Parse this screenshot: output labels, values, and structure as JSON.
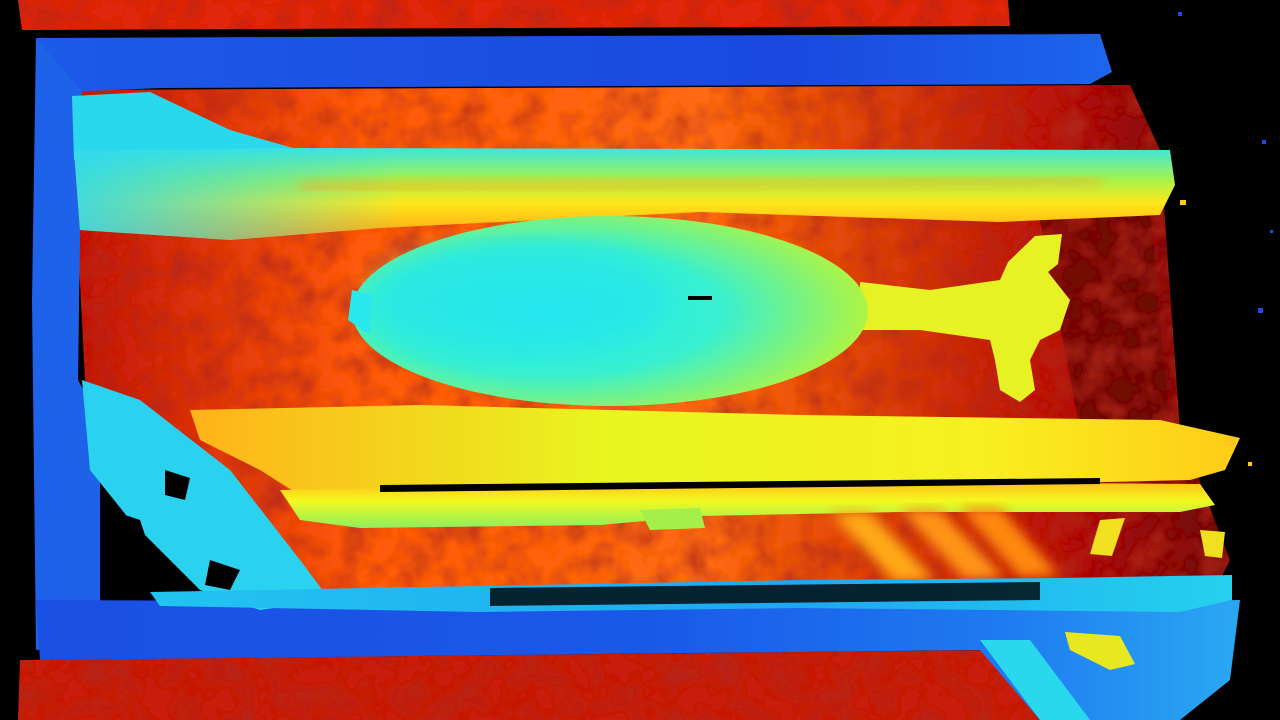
{
  "image": {
    "kind": "depth-map",
    "colormap": "jet",
    "colors": {
      "background": "#000000",
      "near": "#1a4fe0",
      "near_mid": "#21c8ee",
      "mid": "#3ff0d8",
      "mid_far": "#e6f522",
      "far": "#d81e0a",
      "farthest": "#7a0a05"
    },
    "subjects": [
      "frame",
      "floor",
      "lower-rail",
      "upper-rail",
      "fish-body",
      "fish-tail",
      "bottom-crossbar",
      "diagonal-strut"
    ]
  }
}
